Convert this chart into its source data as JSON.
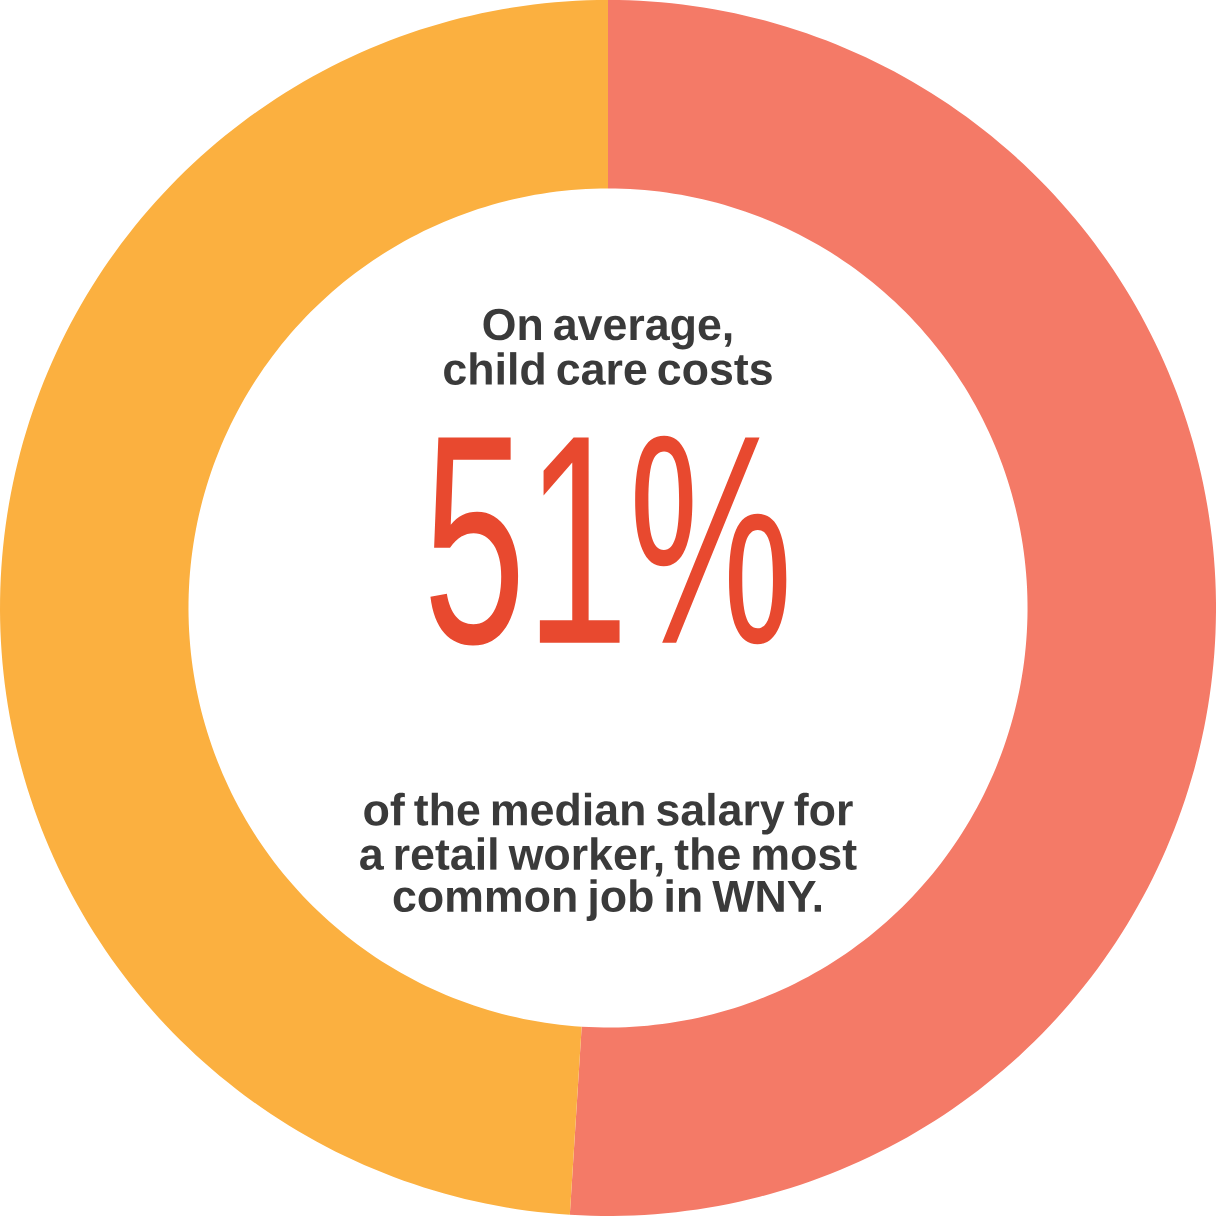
{
  "chart_data": {
    "type": "donut",
    "categories": [
      null,
      null
    ],
    "values": [
      51,
      49
    ],
    "colors": [
      "#f47a67",
      "#fbb040"
    ],
    "value_labels": [
      "51%",
      null
    ],
    "annotations": [
      "On average, child care costs",
      "of the median salary for a retail worker, the most common job in WNY."
    ]
  }
}
